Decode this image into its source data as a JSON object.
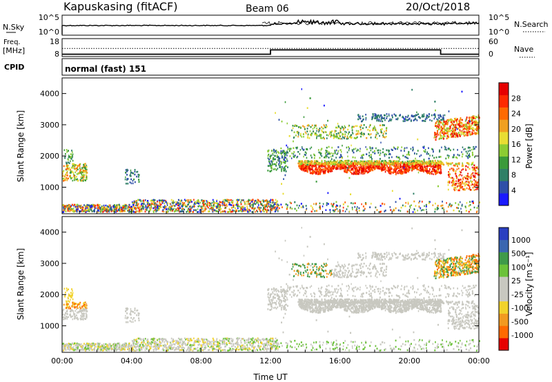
{
  "header": {
    "station": "Kapuskasing (fitACF)",
    "beam": "Beam 06",
    "date": "20/Oct/2018"
  },
  "summary_panels": {
    "nsky_label": "N.Sky",
    "nsky_ticks": [
      "10^5",
      "10^0"
    ],
    "nsearch_label": "N.Search",
    "nsearch_ticks": [
      "10^5",
      "10^0"
    ],
    "freq_label": "Freq.",
    "freq_unit": "[MHz]",
    "freq_ticks": [
      "18",
      "8"
    ],
    "nave_label": "Nave",
    "nave_ticks": [
      "60",
      "0"
    ],
    "cpid_label": "CPID",
    "cpid_value": "normal (fast) 151"
  },
  "colors": {
    "power_scale": [
      "#1a1aff",
      "#2e4fa8",
      "#2f7f66",
      "#3a9a3a",
      "#8ccc33",
      "#e8dd33",
      "#f0a020",
      "#ff6a00",
      "#ff2a00",
      "#e60000"
    ],
    "velocity_scale": [
      "#2a3fc0",
      "#3a66b0",
      "#3f9a4a",
      "#6cc23a",
      "#c8c8c0",
      "#c8c8c0",
      "#f2d22a",
      "#f29a20",
      "#ff6a00",
      "#e60000"
    ],
    "ground_scatter": "#c8c8c0"
  },
  "chart_data": [
    {
      "type": "heatmap",
      "name": "power",
      "ylabel": "Slant Range [km]",
      "xlabel": "",
      "x_range_hours": [
        0,
        24
      ],
      "ylim": [
        150,
        4500
      ],
      "y_ticks": [
        "1000",
        "2000",
        "3000",
        "4000"
      ],
      "colorbar_label": "Power [dB]",
      "colorbar_ticks": [
        "4",
        "8",
        "12",
        "16",
        "20",
        "24",
        "28"
      ],
      "colorbar_range": [
        0,
        32
      ]
    },
    {
      "type": "heatmap",
      "name": "velocity",
      "ylabel": "Slant Range [km]",
      "xlabel": "Time UT",
      "x_range_hours": [
        0,
        24
      ],
      "x_ticks": [
        "00:00",
        "04:00",
        "08:00",
        "12:00",
        "16:00",
        "20:00",
        "00:00"
      ],
      "ylim": [
        150,
        4500
      ],
      "y_ticks": [
        "1000",
        "2000",
        "3000",
        "4000"
      ],
      "colorbar_label": "Velocity [m s⁻¹]",
      "colorbar_ticks": [
        "1000",
        "500",
        "100",
        "25",
        "-25",
        "-100",
        "-500",
        "-1000"
      ]
    }
  ],
  "time_series": {
    "freq_mhz": [
      [
        0,
        9.0
      ],
      [
        12.0,
        9.0
      ],
      [
        12.0,
        11.6
      ],
      [
        21.8,
        11.6
      ],
      [
        21.8,
        9.0
      ],
      [
        24,
        9.0
      ]
    ],
    "freq_dotted_mhz": 12.5,
    "freq_range": [
      8,
      18
    ]
  }
}
